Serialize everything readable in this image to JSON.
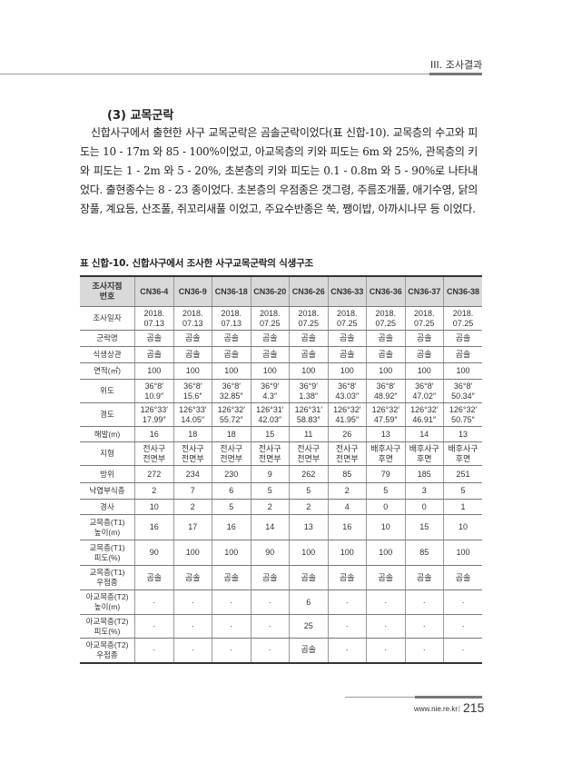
{
  "header": {
    "chapter": "III. 조사결과"
  },
  "section": {
    "title": "(3) 교목군락",
    "paragraph": "신합사구에서 출현한 사구 교목군락은 곰솔군락이었다(표 신합-10). 교목층의 수고와 피도는 10 - 17m 와 85 - 100%이었고, 아교목층의 키와 피도는 6m 와 25%, 관목층의 키와 피도는 1 - 2m 와 5 - 20%, 초본층의 키와 피도는 0.1 - 0.8m 와 5 - 90%로 나타내었다. 출현종수는 8 - 23 종이었다. 초본층의 우점종은 갯그령, 주름조개풀, 애기수영, 닭의장풀, 계요등, 산조풀, 쥐꼬리새풀 이었고, 주요수반종은 쑥, 쨍이밥, 아까시나무 등 이었다."
  },
  "table": {
    "caption": "표 신합-10. 신합사구에서 조사한 사구교목군락의 식생구조",
    "header": [
      "조사지점\n번호",
      "CN36-4",
      "CN36-9",
      "CN36-18",
      "CN36-20",
      "CN36-26",
      "CN36-33",
      "CN36-36",
      "CN36-37",
      "CN36-38"
    ],
    "rows": [
      [
        "조사일자",
        "2018.\n07.13",
        "2018.\n07.13",
        "2018.\n07.13",
        "2018.\n07.25",
        "2018.\n07.25",
        "2018.\n07.25",
        "2018.\n07.25",
        "2018.\n07.25",
        "2018.\n07.25"
      ],
      [
        "군락명",
        "곰솔",
        "곰솔",
        "곰솔",
        "곰솔",
        "곰솔",
        "곰솔",
        "곰솔",
        "곰솔",
        "곰솔"
      ],
      [
        "식생상관",
        "곰솔",
        "곰솔",
        "곰솔",
        "곰솔",
        "곰솔",
        "곰솔",
        "곰솔",
        "곰솔",
        "곰솔"
      ],
      [
        "면적(㎡)",
        "100",
        "100",
        "100",
        "100",
        "100",
        "100",
        "100",
        "100",
        "100"
      ],
      [
        "위도",
        "36°8′\n10.9″",
        "36°8′\n15.6″",
        "36°8′\n32.85″",
        "36°9′\n4.3″",
        "36°9′\n1.38″",
        "36°8′\n43.03″",
        "36°8′\n48.92″",
        "36°8′\n47.02″",
        "36°8′\n50.34″"
      ],
      [
        "경도",
        "126°33′\n17.99″",
        "126°33′\n14.05″",
        "126°32′\n55.72″",
        "126°31′\n42.03″",
        "126°31′\n58.83″",
        "126°32′\n41.95″",
        "126°32′\n47.59″",
        "126°32′\n46.91″",
        "126°32′\n50.75″"
      ],
      [
        "해발(m)",
        "16",
        "18",
        "18",
        "15",
        "11",
        "26",
        "13",
        "14",
        "13"
      ],
      [
        "지형",
        "전사구\n전면부",
        "전사구\n전면부",
        "전사구\n전면부",
        "전사구\n전면부",
        "전사구\n전면부",
        "전사구\n전면부",
        "배후사구\n후면",
        "배후사구\n후면",
        "배후사구\n후면"
      ],
      [
        "방위",
        "272",
        "234",
        "230",
        "9",
        "262",
        "85",
        "79",
        "185",
        "251"
      ],
      [
        "낙엽부식층",
        "2",
        "7",
        "6",
        "5",
        "5",
        "2",
        "5",
        "3",
        "5"
      ],
      [
        "경사",
        "10",
        "2",
        "5",
        "2",
        "2",
        "4",
        "0",
        "0",
        "1"
      ],
      [
        "교목층(T1)\n높이(m)",
        "16",
        "17",
        "16",
        "14",
        "13",
        "16",
        "10",
        "15",
        "10"
      ],
      [
        "교목층(T1)\n피도(%)",
        "90",
        "100",
        "100",
        "90",
        "100",
        "100",
        "100",
        "85",
        "100"
      ],
      [
        "교목층(T1)\n우점종",
        "곰솔",
        "곰솔",
        "곰솔",
        "곰솔",
        "곰솔",
        "곰솔",
        "곰솔",
        "곰솔",
        "곰솔"
      ],
      [
        "아교목층(T2)\n높이(m)",
        "·",
        "·",
        "·",
        "·",
        "6",
        "·",
        "·",
        "·",
        "·"
      ],
      [
        "아교목층(T2)\n피도(%)",
        "·",
        "·",
        "·",
        "·",
        "25",
        "·",
        "·",
        "·",
        "·"
      ],
      [
        "아교목층(T2)\n우점종",
        "·",
        "·",
        "·",
        "·",
        "곰솔",
        "·",
        "·",
        "·",
        "·"
      ]
    ]
  },
  "footer": {
    "url": "www.nie.re.kr",
    "separator": "|",
    "page": "215"
  }
}
